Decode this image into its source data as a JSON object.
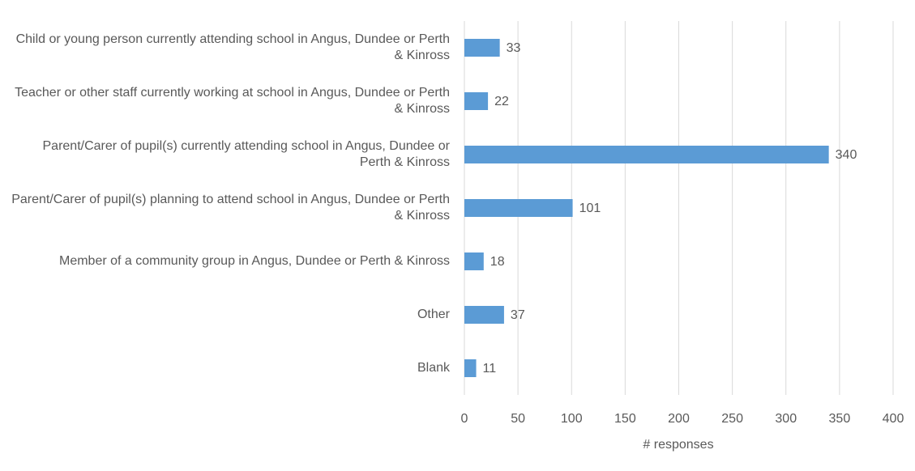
{
  "chart_data": {
    "type": "bar",
    "orientation": "horizontal",
    "xlabel": "# responses",
    "categories": [
      "Child or young person currently attending school in Angus, Dundee or Perth & Kinross",
      "Teacher or other staff currently working at school in Angus, Dundee or Perth & Kinross",
      "Parent/Carer of pupil(s) currently attending school in Angus, Dundee or Perth & Kinross",
      "Parent/Carer of pupil(s) planning to attend school in Angus, Dundee or Perth & Kinross",
      "Member of a community group in Angus, Dundee or Perth & Kinross",
      "Other",
      "Blank"
    ],
    "values": [
      33,
      22,
      340,
      101,
      18,
      37,
      11
    ],
    "color": "#5b9bd5",
    "xlim": [
      0,
      400
    ],
    "xticks": [
      0,
      50,
      100,
      150,
      200,
      250,
      300,
      350,
      400
    ],
    "grid": true
  }
}
